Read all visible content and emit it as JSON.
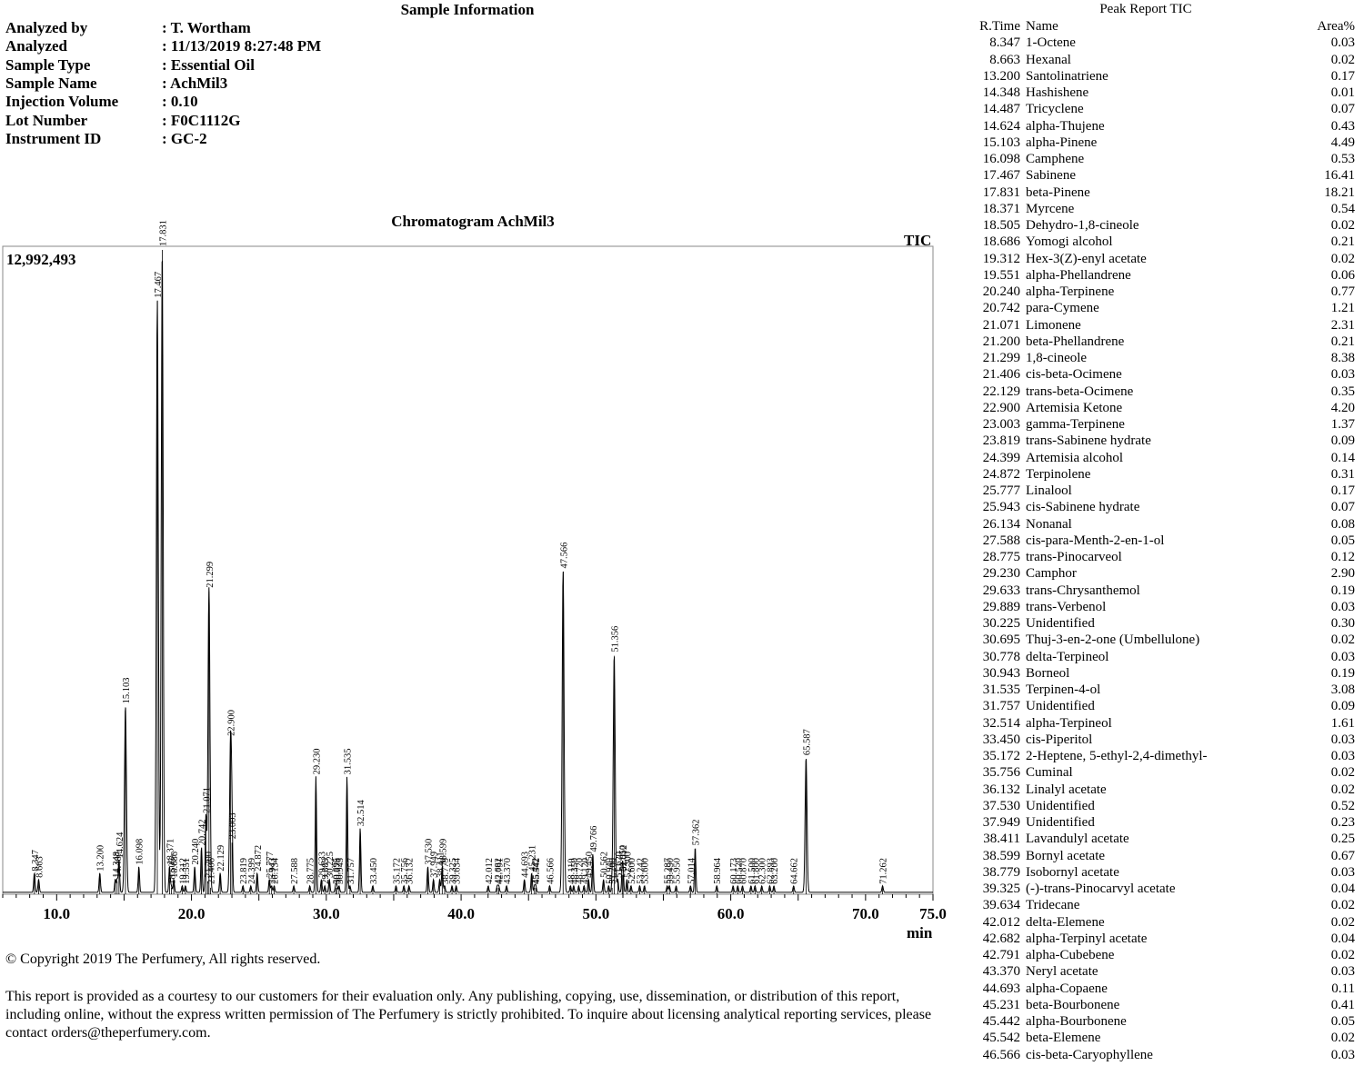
{
  "sample_info": {
    "title": "Sample Information",
    "fields": [
      {
        "label": "Analyzed by",
        "value": ": T. Wortham"
      },
      {
        "label": "Analyzed",
        "value": ": 11/13/2019 8:27:48 PM"
      },
      {
        "label": "Sample Type",
        "value": ": Essential Oil"
      },
      {
        "label": "Sample Name",
        "value": ": AchMil3"
      },
      {
        "label": "Injection Volume",
        "value": ": 0.10"
      },
      {
        "label": "Lot Number",
        "value": ": F0C1112G"
      },
      {
        "label": "Instrument ID",
        "value": ": GC-2"
      }
    ]
  },
  "chart_data": {
    "type": "line",
    "title": "Chromatogram  AchMil3",
    "trace_label": "TIC",
    "y_max_label": "12,992,493",
    "xlabel": "min",
    "xlim": [
      6.0,
      75.0
    ],
    "ylim": [
      0,
      12992493
    ],
    "x_ticks": [
      "10.0",
      "20.0",
      "30.0",
      "40.0",
      "50.0",
      "60.0",
      "70.0",
      "75.0"
    ],
    "x_tick_values": [
      10,
      20,
      30,
      40,
      50,
      60,
      70,
      75
    ],
    "peaks": [
      {
        "rt": 8.347,
        "label": "8.347",
        "height": 0.03
      },
      {
        "rt": 8.663,
        "label": "8.663",
        "height": 0.02
      },
      {
        "rt": 13.2,
        "label": "13.200",
        "height": 0.03
      },
      {
        "rt": 14.348,
        "label": "14.348",
        "height": 0.02
      },
      {
        "rt": 14.487,
        "label": "14.487",
        "height": 0.02
      },
      {
        "rt": 14.624,
        "label": "14.624",
        "height": 0.05
      },
      {
        "rt": 15.103,
        "label": "15.103",
        "height": 0.29
      },
      {
        "rt": 16.098,
        "label": "16.098",
        "height": 0.04
      },
      {
        "rt": 17.467,
        "label": "17.467",
        "height": 0.92
      },
      {
        "rt": 17.831,
        "label": "17.831",
        "height": 1.0
      },
      {
        "rt": 18.371,
        "label": "18.371",
        "height": 0.04
      },
      {
        "rt": 18.505,
        "label": "18.505",
        "height": 0.01
      },
      {
        "rt": 18.686,
        "label": "18.686",
        "height": 0.02
      },
      {
        "rt": 19.312,
        "label": "19.312",
        "height": 0.01
      },
      {
        "rt": 19.551,
        "label": "19.551",
        "height": 0.01
      },
      {
        "rt": 20.24,
        "label": "20.240",
        "height": 0.04
      },
      {
        "rt": 20.742,
        "label": "20.742",
        "height": 0.07
      },
      {
        "rt": 21.071,
        "label": "21.071",
        "height": 0.12
      },
      {
        "rt": 21.2,
        "label": "21.200",
        "height": 0.02
      },
      {
        "rt": 21.299,
        "label": "21.299",
        "height": 0.47
      },
      {
        "rt": 21.406,
        "label": "21.406",
        "height": 0.01
      },
      {
        "rt": 22.129,
        "label": "22.129",
        "height": 0.03
      },
      {
        "rt": 22.9,
        "label": "22.900",
        "height": 0.24
      },
      {
        "rt": 23.003,
        "label": "23.003",
        "height": 0.08
      },
      {
        "rt": 23.819,
        "label": "23.819",
        "height": 0.01
      },
      {
        "rt": 24.399,
        "label": "24.399",
        "height": 0.01
      },
      {
        "rt": 24.872,
        "label": "24.872",
        "height": 0.03
      },
      {
        "rt": 25.777,
        "label": "25.777",
        "height": 0.02
      },
      {
        "rt": 25.943,
        "label": "25.943",
        "height": 0.01
      },
      {
        "rt": 26.134,
        "label": "26.134",
        "height": 0.01
      },
      {
        "rt": 27.588,
        "label": "27.588",
        "height": 0.01
      },
      {
        "rt": 28.775,
        "label": "28.775",
        "height": 0.01
      },
      {
        "rt": 29.23,
        "label": "29.230",
        "height": 0.18
      },
      {
        "rt": 29.633,
        "label": "29.633",
        "height": 0.02
      },
      {
        "rt": 29.889,
        "label": "29.889",
        "height": 0.01
      },
      {
        "rt": 30.225,
        "label": "30.225",
        "height": 0.02
      },
      {
        "rt": 30.695,
        "label": "30.695",
        "height": 0.01
      },
      {
        "rt": 30.778,
        "label": "30.778",
        "height": 0.01
      },
      {
        "rt": 30.943,
        "label": "30.943",
        "height": 0.01
      },
      {
        "rt": 31.535,
        "label": "31.535",
        "height": 0.18
      },
      {
        "rt": 31.757,
        "label": "31.757",
        "height": 0.01
      },
      {
        "rt": 32.514,
        "label": "32.514",
        "height": 0.1
      },
      {
        "rt": 33.45,
        "label": "33.450",
        "height": 0.01
      },
      {
        "rt": 35.172,
        "label": "35.172",
        "height": 0.01
      },
      {
        "rt": 35.756,
        "label": "35.756",
        "height": 0.01
      },
      {
        "rt": 36.132,
        "label": "36.132",
        "height": 0.01
      },
      {
        "rt": 37.53,
        "label": "37.530",
        "height": 0.04
      },
      {
        "rt": 37.949,
        "label": "37.949",
        "height": 0.02
      },
      {
        "rt": 38.411,
        "label": "38.411",
        "height": 0.02
      },
      {
        "rt": 38.599,
        "label": "38.599",
        "height": 0.04
      },
      {
        "rt": 38.779,
        "label": "38.779",
        "height": 0.01
      },
      {
        "rt": 39.325,
        "label": "39.325",
        "height": 0.01
      },
      {
        "rt": 39.634,
        "label": "39.634",
        "height": 0.01
      },
      {
        "rt": 42.012,
        "label": "42.012",
        "height": 0.01
      },
      {
        "rt": 42.682,
        "label": "42.682",
        "height": 0.01
      },
      {
        "rt": 42.791,
        "label": "42.791",
        "height": 0.01
      },
      {
        "rt": 43.37,
        "label": "43.370",
        "height": 0.01
      },
      {
        "rt": 44.693,
        "label": "44.693",
        "height": 0.02
      },
      {
        "rt": 45.231,
        "label": "45.231",
        "height": 0.03
      },
      {
        "rt": 45.442,
        "label": "45.442",
        "height": 0.01
      },
      {
        "rt": 45.542,
        "label": "45.542",
        "height": 0.01
      },
      {
        "rt": 46.566,
        "label": "46.566",
        "height": 0.01
      },
      {
        "rt": 47.566,
        "label": "47.566",
        "height": 0.5
      },
      {
        "rt": 48.11,
        "label": "48.110",
        "height": 0.01
      },
      {
        "rt": 48.35,
        "label": "48.350",
        "height": 0.01
      },
      {
        "rt": 48.72,
        "label": "48.720",
        "height": 0.01
      },
      {
        "rt": 49.12,
        "label": "49.120",
        "height": 0.01
      },
      {
        "rt": 49.45,
        "label": "49.450",
        "height": 0.02
      },
      {
        "rt": 49.766,
        "label": "49.766",
        "height": 0.06
      },
      {
        "rt": 50.562,
        "label": "50.562",
        "height": 0.02
      },
      {
        "rt": 50.94,
        "label": "50.940",
        "height": 0.01
      },
      {
        "rt": 51.2,
        "label": "51.200",
        "height": 0.01
      },
      {
        "rt": 51.356,
        "label": "51.356",
        "height": 0.37
      },
      {
        "rt": 51.62,
        "label": "51.620",
        "height": 0.02
      },
      {
        "rt": 51.95,
        "label": "51.950",
        "height": 0.03
      },
      {
        "rt": 52.012,
        "label": "52.012",
        "height": 0.03
      },
      {
        "rt": 52.3,
        "label": "52.300",
        "height": 0.02
      },
      {
        "rt": 52.6,
        "label": "52.600",
        "height": 0.01
      },
      {
        "rt": 53.242,
        "label": "53.242",
        "height": 0.01
      },
      {
        "rt": 53.6,
        "label": "53.600",
        "height": 0.01
      },
      {
        "rt": 55.287,
        "label": "55.287",
        "height": 0.01
      },
      {
        "rt": 55.45,
        "label": "55.450",
        "height": 0.01
      },
      {
        "rt": 55.95,
        "label": "55.950",
        "height": 0.01
      },
      {
        "rt": 57.014,
        "label": "57.014",
        "height": 0.01
      },
      {
        "rt": 57.362,
        "label": "57.362",
        "height": 0.07
      },
      {
        "rt": 58.964,
        "label": "58.964",
        "height": 0.01
      },
      {
        "rt": 60.173,
        "label": "60.173",
        "height": 0.01
      },
      {
        "rt": 60.52,
        "label": "60.520",
        "height": 0.01
      },
      {
        "rt": 60.87,
        "label": "60.870",
        "height": 0.01
      },
      {
        "rt": 61.5,
        "label": "61.500",
        "height": 0.01
      },
      {
        "rt": 61.8,
        "label": "61.800",
        "height": 0.01
      },
      {
        "rt": 62.3,
        "label": "62.300",
        "height": 0.01
      },
      {
        "rt": 62.893,
        "label": "62.893",
        "height": 0.01
      },
      {
        "rt": 63.2,
        "label": "63.200",
        "height": 0.01
      },
      {
        "rt": 64.662,
        "label": "64.662",
        "height": 0.01
      },
      {
        "rt": 65.587,
        "label": "65.587",
        "height": 0.21
      },
      {
        "rt": 71.262,
        "label": "71.262",
        "height": 0.01
      }
    ]
  },
  "peak_report": {
    "title": "Peak Report TIC",
    "headers": {
      "rt": "R.Time",
      "name": "Name",
      "area": "Area%"
    },
    "rows": [
      [
        "8.347",
        "1-Octene",
        "0.03"
      ],
      [
        "8.663",
        "Hexanal",
        "0.02"
      ],
      [
        "13.200",
        "Santolinatriene",
        "0.17"
      ],
      [
        "14.348",
        "Hashishene",
        "0.01"
      ],
      [
        "14.487",
        "Tricyclene",
        "0.07"
      ],
      [
        "14.624",
        "alpha-Thujene",
        "0.43"
      ],
      [
        "15.103",
        "alpha-Pinene",
        "4.49"
      ],
      [
        "16.098",
        "Camphene",
        "0.53"
      ],
      [
        "17.467",
        "Sabinene",
        "16.41"
      ],
      [
        "17.831",
        "beta-Pinene",
        "18.21"
      ],
      [
        "18.371",
        "Myrcene",
        "0.54"
      ],
      [
        "18.505",
        "Dehydro-1,8-cineole",
        "0.02"
      ],
      [
        "18.686",
        "Yomogi alcohol",
        "0.21"
      ],
      [
        "19.312",
        "Hex-3(Z)-enyl acetate",
        "0.02"
      ],
      [
        "19.551",
        "alpha-Phellandrene",
        "0.06"
      ],
      [
        "20.240",
        "alpha-Terpinene",
        "0.77"
      ],
      [
        "20.742",
        "para-Cymene",
        "1.21"
      ],
      [
        "21.071",
        "Limonene",
        "2.31"
      ],
      [
        "21.200",
        "beta-Phellandrene",
        "0.21"
      ],
      [
        "21.299",
        "1,8-cineole",
        "8.38"
      ],
      [
        "21.406",
        "cis-beta-Ocimene",
        "0.03"
      ],
      [
        "22.129",
        "trans-beta-Ocimene",
        "0.35"
      ],
      [
        "22.900",
        "Artemisia Ketone",
        "4.20"
      ],
      [
        "23.003",
        "gamma-Terpinene",
        "1.37"
      ],
      [
        "23.819",
        "trans-Sabinene hydrate",
        "0.09"
      ],
      [
        "24.399",
        "Artemisia alcohol",
        "0.14"
      ],
      [
        "24.872",
        "Terpinolene",
        "0.31"
      ],
      [
        "25.777",
        "Linalool",
        "0.17"
      ],
      [
        "25.943",
        "cis-Sabinene hydrate",
        "0.07"
      ],
      [
        "26.134",
        "Nonanal",
        "0.08"
      ],
      [
        "27.588",
        "cis-para-Menth-2-en-1-ol",
        "0.05"
      ],
      [
        "28.775",
        "trans-Pinocarveol",
        "0.12"
      ],
      [
        "29.230",
        "Camphor",
        "2.90"
      ],
      [
        "29.633",
        "trans-Chrysanthemol",
        "0.19"
      ],
      [
        "29.889",
        "trans-Verbenol",
        "0.03"
      ],
      [
        "30.225",
        "Unidentified",
        "0.30"
      ],
      [
        "30.695",
        "Thuj-3-en-2-one (Umbellulone)",
        "0.02"
      ],
      [
        "30.778",
        "delta-Terpineol",
        "0.03"
      ],
      [
        "30.943",
        "Borneol",
        "0.19"
      ],
      [
        "31.535",
        "Terpinen-4-ol",
        "3.08"
      ],
      [
        "31.757",
        "Unidentified",
        "0.09"
      ],
      [
        "32.514",
        "alpha-Terpineol",
        "1.61"
      ],
      [
        "33.450",
        "cis-Piperitol",
        "0.03"
      ],
      [
        "35.172",
        "2-Heptene, 5-ethyl-2,4-dimethyl-",
        "0.03"
      ],
      [
        "35.756",
        "Cuminal",
        "0.02"
      ],
      [
        "36.132",
        "Linalyl acetate",
        "0.02"
      ],
      [
        "37.530",
        "Unidentified",
        "0.52"
      ],
      [
        "37.949",
        "Unidentified",
        "0.23"
      ],
      [
        "38.411",
        "Lavandulyl acetate",
        "0.25"
      ],
      [
        "38.599",
        "Bornyl acetate",
        "0.67"
      ],
      [
        "38.779",
        "Isobornyl acetate",
        "0.03"
      ],
      [
        "39.325",
        "(-)-trans-Pinocarvyl acetate",
        "0.04"
      ],
      [
        "39.634",
        "Tridecane",
        "0.02"
      ],
      [
        "42.012",
        "delta-Elemene",
        "0.02"
      ],
      [
        "42.682",
        "alpha-Terpinyl acetate",
        "0.04"
      ],
      [
        "42.791",
        "alpha-Cubebene",
        "0.02"
      ],
      [
        "43.370",
        "Neryl acetate",
        "0.03"
      ],
      [
        "44.693",
        "alpha-Copaene",
        "0.11"
      ],
      [
        "45.231",
        "beta-Bourbonene",
        "0.41"
      ],
      [
        "45.442",
        "alpha-Bourbonene",
        "0.05"
      ],
      [
        "45.542",
        "beta-Elemene",
        "0.02"
      ],
      [
        "46.566",
        "cis-beta-Caryophyllene",
        "0.03"
      ]
    ]
  },
  "footer": {
    "copyright": "© Copyright 2019 The Perfumery, All rights reserved.",
    "disclaimer": "This report is provided as a courtesy to our customers for their evaluation only. Any publishing, copying, use, dissemination, or distribution of this report, including online, without the express written permission of The Perfumery is strictly prohibited. To inquire about licensing analytical reporting services, please contact orders@theperfumery.com."
  }
}
